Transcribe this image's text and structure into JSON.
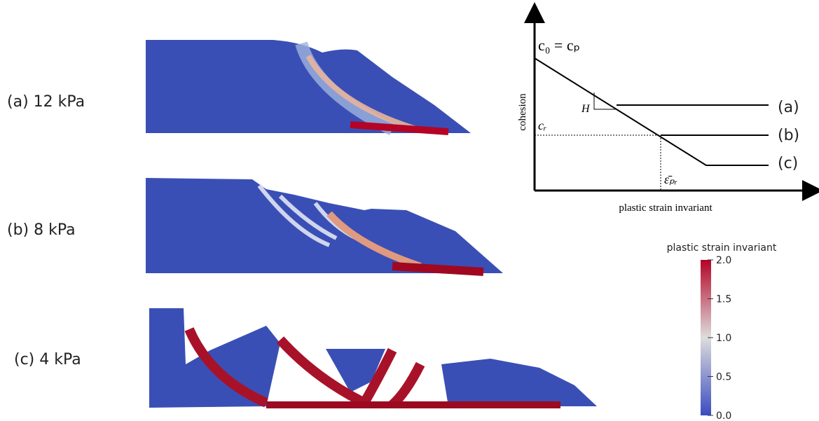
{
  "panels": [
    {
      "label": "(a) 12 kPa"
    },
    {
      "label": "(b) 8 kPa"
    },
    {
      "label": "(c) 4 kPa"
    }
  ],
  "diagram": {
    "y_label": "cohesion",
    "x_label": "plastic strain invariant",
    "peak_label": "c₀ = cₚ",
    "residual_label": "cᵣ",
    "strain_label": "ε̄ₚᵣ",
    "slope_label": "H",
    "curves": [
      "(a)",
      "(b)",
      "(c)"
    ]
  },
  "colorbar": {
    "title": "plastic strain invariant",
    "range": [
      0,
      2
    ],
    "ticks": [
      {
        "value": 0,
        "label": "0.0"
      },
      {
        "value": 0.5,
        "label": "0.5"
      },
      {
        "value": 1,
        "label": "1.0"
      },
      {
        "value": 1.5,
        "label": "1.5"
      },
      {
        "value": 2,
        "label": "2.0"
      }
    ]
  }
}
